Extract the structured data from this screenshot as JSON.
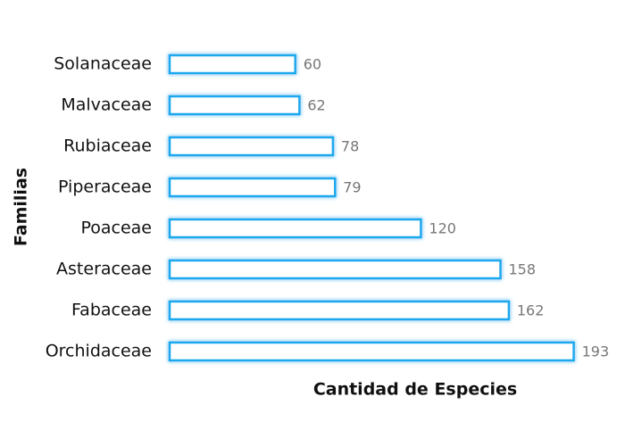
{
  "chart_data": {
    "type": "bar",
    "orientation": "horizontal",
    "x_label": "Cantidad de Especies",
    "y_label": "Familias",
    "categories": [
      "Solanaceae",
      "Malvaceae",
      "Rubiaceae",
      "Piperaceae",
      "Poaceae",
      "Asteraceae",
      "Fabaceae",
      "Orchidaceae"
    ],
    "values": [
      60,
      62,
      78,
      79,
      120,
      158,
      162,
      193
    ],
    "color": "#1ea8ee",
    "xlim": [
      0,
      200
    ]
  }
}
